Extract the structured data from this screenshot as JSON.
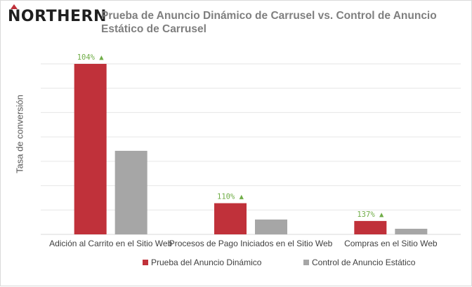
{
  "header": {
    "logo_text": "NORTHERN",
    "title_line1": "Prueba de Anuncio Dinámico de Carrusel vs. Control de Anuncio",
    "title_line2": "Estático de Carrusel"
  },
  "colors": {
    "series_test": "#c0313a",
    "series_control": "#a6a6a6",
    "annotation": "#70ad47",
    "gridline": "#e6e6e6",
    "title": "#7f7f7f"
  },
  "chart_data": {
    "type": "bar",
    "title": "Prueba de Anuncio Dinámico de Carrusel vs. Control de Anuncio Estático de Carrusel",
    "xlabel": "",
    "ylabel": "Tasa de conversión",
    "ylim": [
      0,
      7
    ],
    "grid": true,
    "legend_position": "bottom",
    "categories": [
      "Adición al Carrito en el Sitio Web",
      "Procesos de Pago Iniciados en el Sitio Web",
      "Compras en el Sitio Web"
    ],
    "series": [
      {
        "name": "Prueba del Anuncio Dinámico",
        "values": [
          7.0,
          1.28,
          0.55
        ]
      },
      {
        "name": "Control de Anuncio Estático",
        "values": [
          3.43,
          0.61,
          0.23
        ]
      }
    ],
    "annotations": [
      "104% ▲",
      "110% ▲",
      "137% ▲"
    ]
  }
}
